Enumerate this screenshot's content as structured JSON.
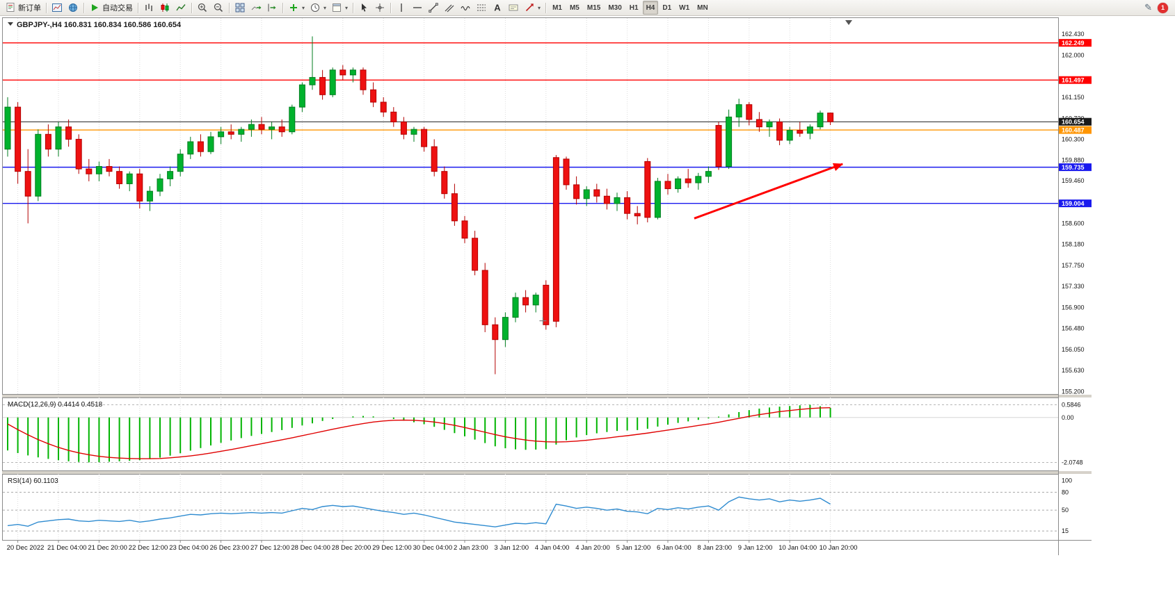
{
  "toolbar": {
    "badge_count": "1",
    "timeframes": [
      "M1",
      "M5",
      "M15",
      "M30",
      "H1",
      "H4",
      "D1",
      "W1",
      "MN"
    ],
    "active_timeframe": "H4",
    "items": [
      {
        "name": "new-order-button",
        "icon": "neworder",
        "label": "新订单"
      },
      {
        "sep": true
      },
      {
        "name": "new-chart-button",
        "icon": "chartwin"
      },
      {
        "name": "profiles-button",
        "icon": "globe"
      },
      {
        "sep": true
      },
      {
        "name": "autotrading-button",
        "icon": "play",
        "label": "自动交易"
      },
      {
        "sep": true
      },
      {
        "name": "bar-chart-button",
        "icon": "bars"
      },
      {
        "name": "candlestick-button",
        "icon": "candles"
      },
      {
        "name": "line-chart-button",
        "icon": "linechart"
      },
      {
        "sep": true
      },
      {
        "name": "zoom-in-button",
        "icon": "zoomin"
      },
      {
        "name": "zoom-out-button",
        "icon": "zoomout"
      },
      {
        "sep": true
      },
      {
        "name": "tile-windows-button",
        "icon": "tile"
      },
      {
        "name": "auto-scroll-button",
        "icon": "autoscroll"
      },
      {
        "name": "chart-shift-button",
        "icon": "shift"
      },
      {
        "sep": true
      },
      {
        "name": "indicators-button",
        "icon": "indicators",
        "caret": true
      },
      {
        "name": "periods-button",
        "icon": "clock",
        "caret": true
      },
      {
        "name": "templates-button",
        "icon": "template",
        "caret": true
      },
      {
        "sep": true
      },
      {
        "name": "cursor-button",
        "icon": "cursor"
      },
      {
        "name": "crosshair-button",
        "icon": "crosshair"
      },
      {
        "sep": true
      },
      {
        "name": "vertical-line-button",
        "icon": "vline"
      },
      {
        "name": "horizontal-line-button",
        "icon": "hline"
      },
      {
        "name": "trendline-button",
        "icon": "trendline"
      },
      {
        "name": "channel-button",
        "icon": "channel"
      },
      {
        "name": "fibonacci-button",
        "icon": "wave"
      },
      {
        "name": "levels-button",
        "icon": "levels"
      },
      {
        "name": "text-button",
        "icon": "text"
      },
      {
        "name": "label-button",
        "icon": "labelbox"
      },
      {
        "name": "arrows-button",
        "icon": "arrowobj",
        "caret": true
      },
      {
        "sep": true
      }
    ]
  },
  "chart": {
    "title_line": "GBPJPY-,H4 160.831 160.834 160.586 160.654",
    "symbol": "GBPJPY-",
    "period": "H4"
  },
  "chart_data": {
    "type": "candlestick",
    "title": "GBPJPY-,H4",
    "current_quote": {
      "open": 160.831,
      "high": 160.834,
      "low": 160.586,
      "close": 160.654
    },
    "colors": {
      "up_fill": "#00b22d",
      "up_stroke": "#007d1f",
      "down_fill": "#ee1111",
      "down_stroke": "#b30000",
      "grid": "#dcdcdc",
      "macd_bar": "#00b400",
      "macd_signal": "#e00000",
      "rsi_line": "#2e8bd0",
      "arrow": "#ff0000"
    },
    "y_range": [
      155.15,
      162.75
    ],
    "y_tick_labels": [
      "162.430",
      "162.000",
      "161.150",
      "160.720",
      "160.300",
      "159.880",
      "159.460",
      "158.600",
      "158.180",
      "157.750",
      "157.330",
      "156.900",
      "156.480",
      "156.050",
      "155.630",
      "155.200"
    ],
    "hlines": [
      {
        "name": "resistance-line-upper",
        "label": "162.249",
        "price": 162.249,
        "color": "#ff0000",
        "text": "#ffffff"
      },
      {
        "name": "resistance-line-lower",
        "label": "161.497",
        "price": 161.497,
        "color": "#ff0000",
        "text": "#ffffff"
      },
      {
        "name": "current-price-line",
        "label": "160.654",
        "price": 160.654,
        "color": "#1a1a1a",
        "text": "#ffffff"
      },
      {
        "name": "pivot-line-orange",
        "label": "160.487",
        "price": 160.487,
        "color": "#ff9500",
        "text": "#ffffff"
      },
      {
        "name": "support-line-upper",
        "label": "159.735",
        "price": 159.735,
        "color": "#1a1aee",
        "text": "#ffffff"
      },
      {
        "name": "support-line-lower",
        "label": "159.004",
        "price": 159.004,
        "color": "#1a1aee",
        "text": "#ffffff"
      }
    ],
    "x_labels": [
      "20 Dec 2022",
      "21 Dec 04:00",
      "21 Dec 20:00",
      "22 Dec 12:00",
      "23 Dec 04:00",
      "26 Dec 23:00",
      "27 Dec 12:00",
      "28 Dec 04:00",
      "28 Dec 20:00",
      "29 Dec 12:00",
      "30 Dec 04:00",
      "2 Jan 23:00",
      "3 Jan 12:00",
      "4 Jan 04:00",
      "4 Jan 20:00",
      "5 Jan 12:00",
      "6 Jan 04:00",
      "8 Jan 23:00",
      "9 Jan 12:00",
      "10 Jan 04:00",
      "10 Jan 20:00"
    ],
    "x_label_start_candle": 1,
    "x_label_step": 4,
    "candles": [
      [
        160.1,
        161.15,
        159.95,
        160.95
      ],
      [
        160.95,
        161.05,
        159.4,
        159.65
      ],
      [
        159.65,
        160.1,
        158.6,
        159.15
      ],
      [
        159.15,
        160.5,
        159.05,
        160.4
      ],
      [
        160.4,
        160.6,
        159.95,
        160.1
      ],
      [
        160.1,
        160.65,
        159.95,
        160.55
      ],
      [
        160.55,
        160.7,
        160.15,
        160.3
      ],
      [
        160.3,
        160.4,
        159.6,
        159.7
      ],
      [
        159.7,
        159.9,
        159.45,
        159.6
      ],
      [
        159.6,
        159.85,
        159.45,
        159.75
      ],
      [
        159.75,
        159.9,
        159.55,
        159.65
      ],
      [
        159.65,
        159.75,
        159.3,
        159.4
      ],
      [
        159.4,
        159.65,
        159.25,
        159.6
      ],
      [
        159.6,
        159.7,
        158.9,
        159.05
      ],
      [
        159.05,
        159.35,
        158.85,
        159.25
      ],
      [
        159.25,
        159.6,
        159.15,
        159.5
      ],
      [
        159.5,
        159.75,
        159.35,
        159.65
      ],
      [
        159.65,
        160.1,
        159.55,
        160.0
      ],
      [
        160.0,
        160.35,
        159.9,
        160.25
      ],
      [
        160.25,
        160.4,
        159.95,
        160.05
      ],
      [
        160.05,
        160.45,
        160.0,
        160.35
      ],
      [
        160.35,
        160.55,
        160.2,
        160.45
      ],
      [
        160.45,
        160.6,
        160.3,
        160.4
      ],
      [
        160.4,
        160.55,
        160.25,
        160.5
      ],
      [
        160.5,
        160.7,
        160.35,
        160.6
      ],
      [
        160.6,
        160.75,
        160.4,
        160.5
      ],
      [
        160.5,
        160.65,
        160.3,
        160.55
      ],
      [
        160.55,
        160.7,
        160.35,
        160.45
      ],
      [
        160.45,
        161.0,
        160.4,
        160.95
      ],
      [
        160.95,
        161.45,
        160.85,
        161.4
      ],
      [
        161.4,
        162.38,
        161.3,
        161.55
      ],
      [
        161.55,
        161.7,
        161.1,
        161.2
      ],
      [
        161.2,
        161.75,
        161.15,
        161.7
      ],
      [
        161.7,
        161.8,
        161.5,
        161.6
      ],
      [
        161.6,
        161.75,
        161.45,
        161.7
      ],
      [
        161.7,
        161.75,
        161.2,
        161.3
      ],
      [
        161.3,
        161.45,
        160.95,
        161.05
      ],
      [
        161.05,
        161.15,
        160.75,
        160.85
      ],
      [
        160.85,
        160.95,
        160.55,
        160.65
      ],
      [
        160.65,
        160.75,
        160.3,
        160.4
      ],
      [
        160.4,
        160.55,
        160.25,
        160.5
      ],
      [
        160.5,
        160.55,
        160.05,
        160.15
      ],
      [
        160.15,
        160.3,
        159.55,
        159.65
      ],
      [
        159.65,
        159.75,
        159.1,
        159.2
      ],
      [
        159.2,
        159.4,
        158.55,
        158.65
      ],
      [
        158.65,
        158.75,
        158.2,
        158.3
      ],
      [
        158.3,
        158.45,
        157.55,
        157.65
      ],
      [
        157.65,
        157.8,
        156.4,
        156.55
      ],
      [
        156.55,
        156.7,
        155.55,
        156.25
      ],
      [
        156.25,
        156.8,
        156.1,
        156.7
      ],
      [
        156.7,
        157.2,
        156.6,
        157.1
      ],
      [
        157.1,
        157.25,
        156.8,
        156.95
      ],
      [
        156.95,
        157.2,
        156.8,
        157.15
      ],
      [
        157.35,
        157.45,
        156.45,
        156.55
      ],
      [
        159.93,
        159.98,
        156.5,
        156.62
      ],
      [
        159.9,
        159.95,
        159.28,
        159.38
      ],
      [
        159.38,
        159.55,
        158.98,
        159.1
      ],
      [
        159.1,
        159.35,
        158.95,
        159.28
      ],
      [
        159.28,
        159.4,
        159.02,
        159.15
      ],
      [
        159.15,
        159.3,
        158.88,
        159.0
      ],
      [
        159.0,
        159.22,
        158.85,
        159.12
      ],
      [
        159.12,
        159.25,
        158.68,
        158.8
      ],
      [
        158.8,
        158.95,
        158.58,
        158.75
      ],
      [
        159.85,
        159.92,
        158.62,
        158.72
      ],
      [
        158.72,
        159.52,
        158.68,
        159.45
      ],
      [
        159.45,
        159.6,
        159.18,
        159.3
      ],
      [
        159.3,
        159.55,
        159.22,
        159.5
      ],
      [
        159.5,
        159.7,
        159.32,
        159.42
      ],
      [
        159.42,
        159.62,
        159.28,
        159.55
      ],
      [
        159.55,
        159.75,
        159.42,
        159.65
      ],
      [
        160.58,
        160.65,
        159.68,
        159.75
      ],
      [
        159.75,
        160.9,
        159.7,
        160.75
      ],
      [
        160.75,
        161.12,
        160.55,
        161.0
      ],
      [
        161.0,
        161.05,
        160.58,
        160.7
      ],
      [
        160.7,
        160.85,
        160.45,
        160.55
      ],
      [
        160.55,
        160.7,
        160.35,
        160.65
      ],
      [
        160.65,
        160.72,
        160.18,
        160.28
      ],
      [
        160.28,
        160.55,
        160.2,
        160.48
      ],
      [
        160.48,
        160.65,
        160.35,
        160.42
      ],
      [
        160.42,
        160.6,
        160.3,
        160.55
      ],
      [
        160.55,
        160.88,
        160.5,
        160.83
      ],
      [
        160.831,
        160.834,
        160.586,
        160.654
      ]
    ],
    "arrow": {
      "name": "trend-arrow",
      "c1": 67.6,
      "p1": 158.7,
      "c2": 82.2,
      "p2": 159.8
    },
    "cross_marker": {
      "candle": 52.7,
      "price": 156.63
    },
    "macd": {
      "label_full": "MACD(12,26,9) 0.4414 0.4518",
      "value_main": 0.4414,
      "value_signal": 0.4518,
      "y_tick_labels": [
        "0.5846",
        "0.00",
        "-2.0748"
      ],
      "y_range": [
        0.73,
        -2.25
      ],
      "histogram": [
        -1.52,
        -1.64,
        -1.75,
        -1.84,
        -1.91,
        -1.97,
        -2.02,
        -2.05,
        -2.07,
        -2.06,
        -2.04,
        -2.02,
        -2.0,
        -1.97,
        -1.92,
        -1.85,
        -1.76,
        -1.65,
        -1.53,
        -1.41,
        -1.29,
        -1.17,
        -1.06,
        -0.95,
        -0.85,
        -0.76,
        -0.67,
        -0.58,
        -0.48,
        -0.37,
        -0.27,
        -0.16,
        -0.07,
        0.0,
        0.05,
        0.07,
        0.05,
        0.0,
        -0.07,
        -0.15,
        -0.22,
        -0.31,
        -0.43,
        -0.57,
        -0.72,
        -0.87,
        -1.02,
        -1.18,
        -1.33,
        -1.42,
        -1.47,
        -1.49,
        -1.48,
        -1.46,
        -1.25,
        -1.05,
        -0.92,
        -0.81,
        -0.73,
        -0.67,
        -0.62,
        -0.6,
        -0.58,
        -0.52,
        -0.42,
        -0.33,
        -0.25,
        -0.18,
        -0.11,
        -0.04,
        0.04,
        0.14,
        0.25,
        0.34,
        0.41,
        0.46,
        0.5,
        0.53,
        0.56,
        0.5846,
        0.52,
        0.4414
      ],
      "signal": [
        -0.3,
        -0.56,
        -0.8,
        -1.02,
        -1.21,
        -1.38,
        -1.52,
        -1.63,
        -1.72,
        -1.79,
        -1.84,
        -1.87,
        -1.89,
        -1.9,
        -1.9,
        -1.89,
        -1.86,
        -1.82,
        -1.77,
        -1.71,
        -1.64,
        -1.56,
        -1.48,
        -1.39,
        -1.3,
        -1.21,
        -1.12,
        -1.03,
        -0.94,
        -0.84,
        -0.74,
        -0.64,
        -0.54,
        -0.45,
        -0.36,
        -0.28,
        -0.21,
        -0.16,
        -0.13,
        -0.12,
        -0.13,
        -0.16,
        -0.21,
        -0.28,
        -0.36,
        -0.46,
        -0.57,
        -0.68,
        -0.79,
        -0.89,
        -0.97,
        -1.04,
        -1.09,
        -1.12,
        -1.13,
        -1.12,
        -1.09,
        -1.05,
        -1.0,
        -0.95,
        -0.89,
        -0.84,
        -0.78,
        -0.72,
        -0.65,
        -0.58,
        -0.51,
        -0.44,
        -0.37,
        -0.3,
        -0.22,
        -0.13,
        -0.04,
        0.05,
        0.13,
        0.2,
        0.27,
        0.32,
        0.37,
        0.41,
        0.44,
        0.4518
      ]
    },
    "rsi": {
      "label_full": "RSI(14) 60.1103",
      "value": 60.1103,
      "y_tick_labels": [
        "100",
        "80",
        "50",
        "15"
      ],
      "levels": [
        80,
        50,
        15
      ],
      "y_range": [
        0,
        105
      ],
      "values": [
        24,
        26,
        23,
        30,
        32,
        34,
        35,
        32,
        31,
        33,
        32,
        31,
        33,
        30,
        32,
        35,
        37,
        40,
        43,
        42,
        44,
        45,
        44,
        45,
        46,
        45,
        46,
        45,
        49,
        53,
        51,
        56,
        58,
        56,
        57,
        54,
        51,
        48,
        46,
        43,
        45,
        42,
        38,
        34,
        30,
        28,
        26,
        24,
        22,
        25,
        28,
        27,
        29,
        27,
        60,
        57,
        53,
        55,
        53,
        50,
        52,
        48,
        47,
        44,
        53,
        51,
        54,
        52,
        55,
        57,
        50,
        64,
        72,
        69,
        67,
        69,
        64,
        67,
        65,
        67,
        70,
        60.11
      ]
    }
  }
}
